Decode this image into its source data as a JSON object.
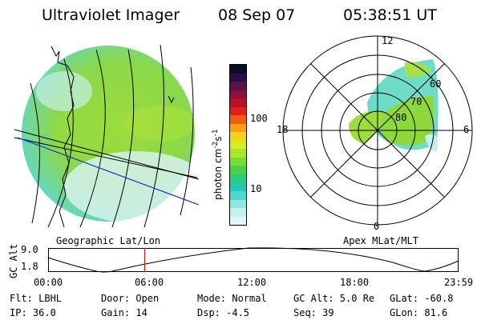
{
  "header": {
    "title": "Ultraviolet Imager",
    "date": "08 Sep 07",
    "time": "05:38:51 UT"
  },
  "colorbar": {
    "label": "photon cm",
    "label_exp1": "-2",
    "label_s": "s",
    "label_exp2": "-1",
    "ticks": [
      "100",
      "10"
    ],
    "colors": [
      "#0b0b2a",
      "#2a0f45",
      "#5a124a",
      "#8a1040",
      "#b8102a",
      "#e0201a",
      "#f55a10",
      "#fca012",
      "#f5d21a",
      "#d6ec22",
      "#a8e62a",
      "#78dc34",
      "#49d24a",
      "#2ccb7c",
      "#22c8b2",
      "#4fd8d2",
      "#8fe6e2",
      "#c6f0ee",
      "#e4f6f6"
    ]
  },
  "geo_panel": {
    "label": "Geographic Lat/Lon"
  },
  "polar_panel": {
    "label": "Apex MLat/MLT",
    "mlt_labels": {
      "top": "12",
      "left": "18",
      "right": "6",
      "bottom": "0"
    },
    "lat_labels": [
      "80",
      "70",
      "60"
    ]
  },
  "altitude_plot": {
    "ylabel": "GC Alt",
    "yticks": [
      "9.0",
      "1.8"
    ],
    "xticks": [
      "00:00",
      "06:00",
      "12:00",
      "18:00",
      "23:59"
    ],
    "current_time_fraction": 0.2353
  },
  "status": {
    "row1": {
      "flt": "Flt: LBHL",
      "door": "Door: Open",
      "mode": "Mode: Normal",
      "gcalt": "GC Alt: 5.0 Re",
      "glat": "GLat: -60.8"
    },
    "row2": {
      "ip": "IP: 36.0",
      "gain": "Gain: 14",
      "dsp": "Dsp:   -4.5",
      "seq": "Seq: 39",
      "glon": "GLon:  81.6"
    }
  },
  "colors": {
    "aurora_green": "#8fd83a",
    "aurora_cyan": "#6fe0d0",
    "aurora_light": "#d8f2f0",
    "marker_red": "#d81818",
    "line_blue": "#1030d0"
  }
}
